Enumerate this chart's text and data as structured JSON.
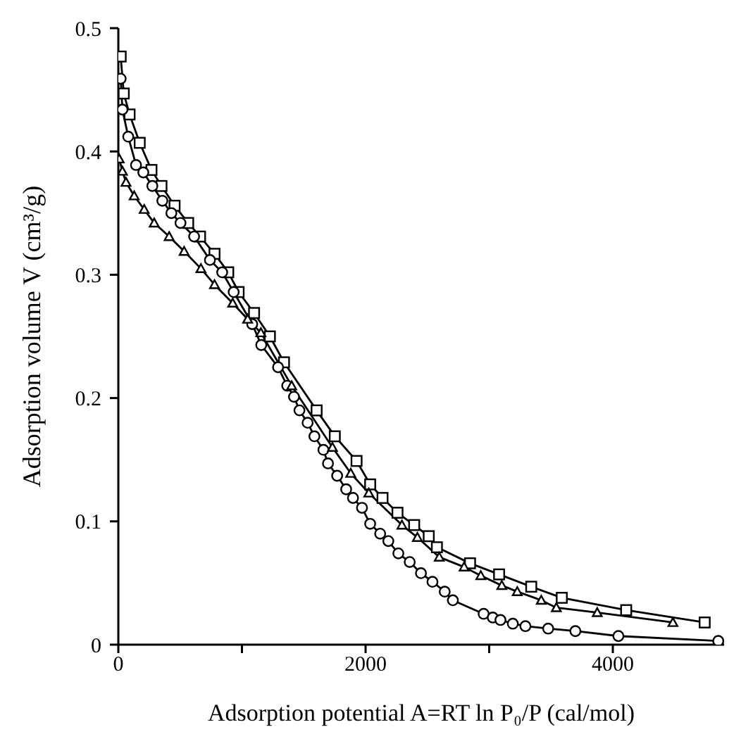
{
  "chart_data": {
    "type": "line",
    "xlabel": "Adsorption potential A=RT ln P₀/P (cal/mol)",
    "ylabel": "Adsorption volume V (cm³/g)",
    "xlim": [
      0,
      4900
    ],
    "ylim": [
      0,
      0.5
    ],
    "xticks": [
      0,
      {
        "value": 1000,
        "label": null
      },
      2000,
      {
        "value": 3000,
        "label": null
      },
      4000
    ],
    "yticks": [
      0,
      0.1,
      0.2,
      0.3,
      0.4,
      0.5
    ],
    "grid": false,
    "legend": false,
    "line_style": "solid",
    "series": [
      {
        "color": "#000000",
        "marker": "square",
        "x": [
          19,
          44,
          91,
          173,
          268,
          349,
          455,
          565,
          661,
          778,
          889,
          973,
          1098,
          1226,
          1340,
          1604,
          1751,
          1927,
          2037,
          2137,
          2258,
          2393,
          2511,
          2577,
          2845,
          3080,
          3340,
          3587,
          4108,
          4743
        ],
        "values": [
          0.477,
          0.447,
          0.43,
          0.407,
          0.385,
          0.372,
          0.356,
          0.342,
          0.331,
          0.317,
          0.302,
          0.286,
          0.269,
          0.25,
          0.229,
          0.19,
          0.169,
          0.149,
          0.13,
          0.119,
          0.107,
          0.097,
          0.088,
          0.079,
          0.066,
          0.057,
          0.047,
          0.038,
          0.028,
          0.018
        ]
      },
      {
        "color": "#000000",
        "marker": "circle",
        "x": [
          19,
          33,
          80,
          143,
          202,
          275,
          356,
          429,
          503,
          613,
          741,
          840,
          933,
          1083,
          1156,
          1292,
          1366,
          1421,
          1465,
          1531,
          1586,
          1659,
          1696,
          1770,
          1843,
          1898,
          1971,
          2037,
          2118,
          2184,
          2265,
          2357,
          2448,
          2541,
          2640,
          2706,
          2955,
          3029,
          3091,
          3191,
          3293,
          3477,
          3697,
          4045,
          4853
        ],
        "values": [
          0.459,
          0.434,
          0.412,
          0.389,
          0.383,
          0.372,
          0.36,
          0.35,
          0.342,
          0.331,
          0.312,
          0.302,
          0.286,
          0.26,
          0.243,
          0.225,
          0.21,
          0.201,
          0.19,
          0.18,
          0.169,
          0.158,
          0.147,
          0.137,
          0.126,
          0.119,
          0.111,
          0.098,
          0.09,
          0.084,
          0.074,
          0.067,
          0.058,
          0.051,
          0.043,
          0.036,
          0.025,
          0.022,
          0.02,
          0.017,
          0.015,
          0.013,
          0.011,
          0.007,
          0.003
        ]
      },
      {
        "color": "#000000",
        "marker": "triangle",
        "x": [
          7,
          33,
          62,
          128,
          209,
          290,
          411,
          532,
          668,
          778,
          925,
          1046,
          1153,
          1402,
          1732,
          1880,
          2026,
          2294,
          2419,
          2596,
          2797,
          2932,
          3102,
          3227,
          3421,
          3543,
          3874,
          4486
        ],
        "values": [
          0.394,
          0.384,
          0.375,
          0.364,
          0.353,
          0.342,
          0.331,
          0.319,
          0.305,
          0.292,
          0.277,
          0.264,
          0.253,
          0.21,
          0.16,
          0.139,
          0.123,
          0.097,
          0.087,
          0.071,
          0.063,
          0.056,
          0.048,
          0.043,
          0.036,
          0.03,
          0.026,
          0.018
        ]
      }
    ]
  }
}
